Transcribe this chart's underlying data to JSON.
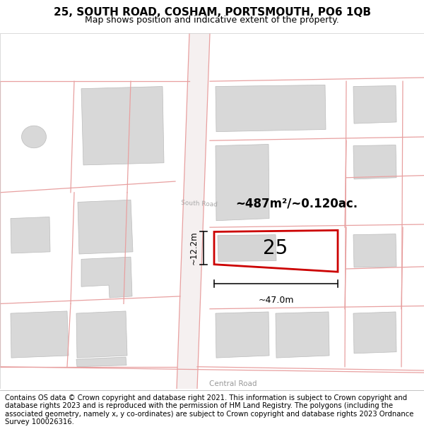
{
  "title": "25, SOUTH ROAD, COSHAM, PORTSMOUTH, PO6 1QB",
  "subtitle": "Map shows position and indicative extent of the property.",
  "footer": "Contains OS data © Crown copyright and database right 2021. This information is subject to Crown copyright and database rights 2023 and is reproduced with the permission of HM Land Registry. The polygons (including the associated geometry, namely x, y co-ordinates) are subject to Crown copyright and database rights 2023 Ordnance Survey 100026316.",
  "area_text": "~487m²/~0.120ac.",
  "number_text": "25",
  "dim_width": "~47.0m",
  "dim_height": "~12.2m",
  "road_label_south": "South Road",
  "road_label_central": "Central Road",
  "road_line_color": "#e8a0a0",
  "property_outline_color": "#cc0000",
  "dim_line_color": "#111111",
  "title_fontsize": 11,
  "subtitle_fontsize": 9,
  "footer_fontsize": 7.2
}
